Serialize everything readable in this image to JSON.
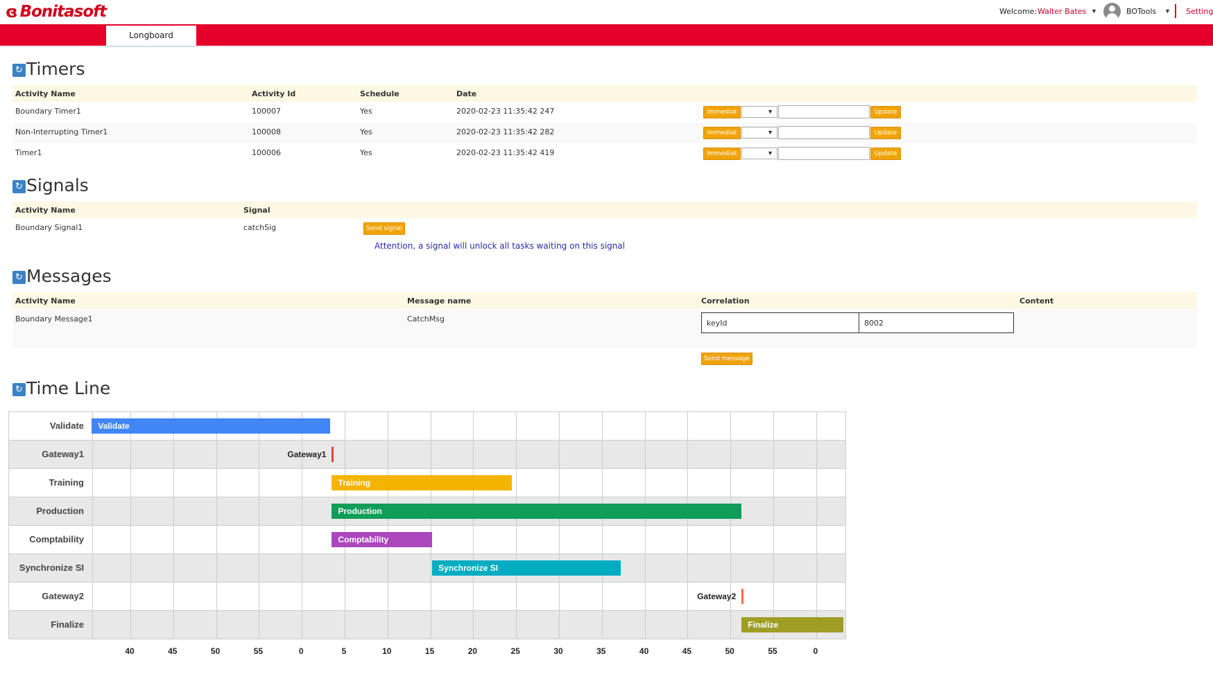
{
  "header": {
    "logo_text": "Bonitasoft",
    "welcome_label": "Welcome:",
    "user_name": "Walter Bates",
    "app_name": "BOTools",
    "settings_label": "Settings",
    "active_tab": "Longboard",
    "brand_color": "#e4002b"
  },
  "timers": {
    "title": "Timers",
    "columns": [
      "Activity Name",
      "Activity Id",
      "Schedule",
      "Date"
    ],
    "rows": [
      {
        "name": "Boundary Timer1",
        "id": "100007",
        "schedule": "Yes",
        "date": "2020-02-23 11:35:42 247"
      },
      {
        "name": "Non-Interrupting Timer1",
        "id": "100008",
        "schedule": "Yes",
        "date": "2020-02-23 11:35:42 282"
      },
      {
        "name": "Timer1",
        "id": "100006",
        "schedule": "Yes",
        "date": "2020-02-23 11:35:42 419"
      }
    ],
    "immediate_label": "Immediat",
    "update_label": "Update"
  },
  "signals": {
    "title": "Signals",
    "columns": [
      "Activity Name",
      "Signal"
    ],
    "rows": [
      {
        "name": "Boundary Signal1",
        "signal": "catchSig"
      }
    ],
    "send_label": "Send signal",
    "attention": "Attention, a signal will unlock all tasks waiting on this signal"
  },
  "messages": {
    "title": "Messages",
    "columns": [
      "Activity Name",
      "Message name",
      "Correlation",
      "Content"
    ],
    "rows": [
      {
        "name": "Boundary Message1",
        "message": "CatchMsg",
        "corr_key": "keyId",
        "corr_value": "8002"
      }
    ],
    "send_label": "Send message"
  },
  "timeline": {
    "title": "Time Line"
  },
  "chart_data": {
    "type": "timeline",
    "x_tick_labels": [
      "40",
      "45",
      "50",
      "55",
      "0",
      "5",
      "10",
      "15",
      "20",
      "25",
      "30",
      "35",
      "40",
      "45",
      "50",
      "55",
      "0"
    ],
    "rows": [
      {
        "label": "Validate",
        "kind": "bar",
        "text": "Validate",
        "start": 35.5,
        "end": 63.3,
        "color": "#4285f4"
      },
      {
        "label": "Gateway1",
        "kind": "milestone",
        "text": "Gateway1",
        "start": 63.5,
        "end": 63.5,
        "color": "#db4437"
      },
      {
        "label": "Training",
        "kind": "bar",
        "text": "Training",
        "start": 63.5,
        "end": 84.5,
        "color": "#f4b400"
      },
      {
        "label": "Production",
        "kind": "bar",
        "text": "Production",
        "start": 63.5,
        "end": 111.3,
        "color": "#0f9d58"
      },
      {
        "label": "Comptability",
        "kind": "bar",
        "text": "Comptability",
        "start": 63.5,
        "end": 75.2,
        "color": "#ab47bc"
      },
      {
        "label": "Synchronize SI",
        "kind": "bar",
        "text": "Synchronize SI",
        "start": 75.2,
        "end": 97.2,
        "color": "#00acc1"
      },
      {
        "label": "Gateway2",
        "kind": "milestone",
        "text": "Gateway2",
        "start": 111.3,
        "end": 111.3,
        "color": "#ff7043"
      },
      {
        "label": "Finalize",
        "kind": "bar",
        "text": "Finalize",
        "start": 111.3,
        "end": 123.2,
        "color": "#9e9d24"
      }
    ]
  }
}
